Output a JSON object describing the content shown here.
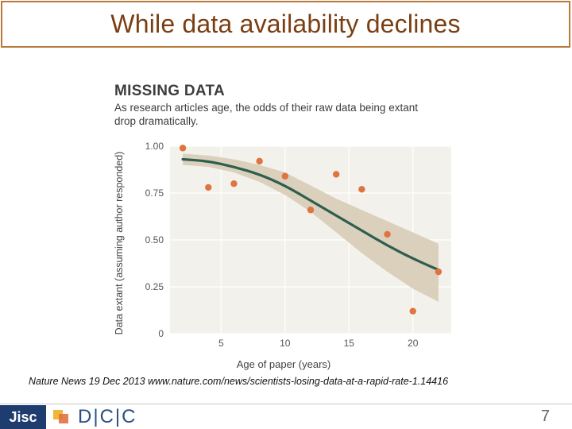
{
  "slide": {
    "title": "While data availability declines",
    "citation": "Nature News 19 Dec 2013 www.nature.com/news/scientists-losing-data-at-a-rapid-rate-1.14416",
    "page_number": "7"
  },
  "footer": {
    "jisc_logo": "Jisc",
    "dcc_logo": "D|C|C"
  },
  "colors": {
    "title_border": "#b87a3a",
    "title_text": "#7a3e12",
    "points": "#e0733f",
    "trend_line": "#2d5e4e",
    "confidence_band": "#d9cdb9",
    "jisc_blue": "#1e3d6e"
  },
  "chart_data": {
    "type": "scatter",
    "title": "MISSING DATA",
    "subtitle": "As research articles age, the odds of their raw data being extant drop dramatically.",
    "xlabel": "Age of paper (years)",
    "ylabel": "Data extant (assuming author responded)",
    "xlim": [
      1,
      23
    ],
    "ylim": [
      0,
      1.0
    ],
    "x_ticks": [
      5,
      10,
      15,
      20
    ],
    "x_tick_labels": [
      "5",
      "10",
      "15",
      "20"
    ],
    "y_ticks": [
      0,
      0.25,
      0.5,
      0.75,
      1.0
    ],
    "y_tick_labels": [
      "0",
      "0.25",
      "0.50",
      "0.75",
      "1.00"
    ],
    "grid": true,
    "points": {
      "x": [
        2,
        4,
        6,
        8,
        10,
        12,
        14,
        16,
        18,
        20,
        22
      ],
      "y": [
        0.99,
        0.78,
        0.8,
        0.92,
        0.84,
        0.66,
        0.85,
        0.77,
        0.53,
        0.12,
        0.33
      ]
    },
    "fit": {
      "x": [
        2,
        4,
        6,
        8,
        10,
        12,
        14,
        16,
        18,
        20,
        22
      ],
      "y": [
        0.93,
        0.92,
        0.89,
        0.85,
        0.79,
        0.71,
        0.63,
        0.55,
        0.47,
        0.4,
        0.34
      ],
      "lower": [
        0.9,
        0.89,
        0.86,
        0.81,
        0.74,
        0.65,
        0.54,
        0.43,
        0.33,
        0.24,
        0.17
      ],
      "upper": [
        0.96,
        0.95,
        0.93,
        0.9,
        0.86,
        0.79,
        0.72,
        0.66,
        0.6,
        0.54,
        0.48
      ]
    }
  }
}
